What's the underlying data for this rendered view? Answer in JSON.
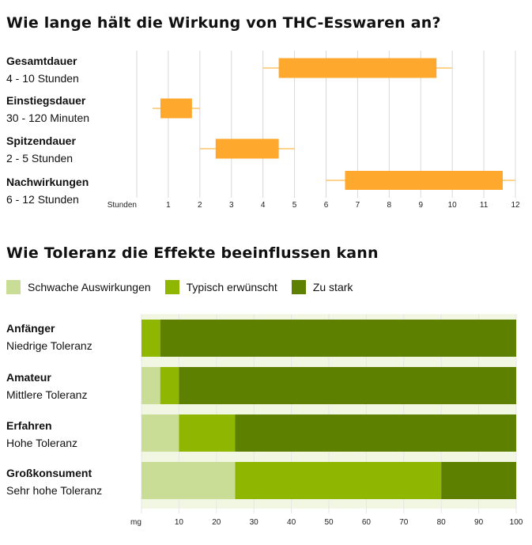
{
  "chart_data": [
    {
      "type": "bar",
      "title": "Wie lange hält die Wirkung von THC-Esswaren an?",
      "xlabel": "Stunden",
      "xlim": [
        0,
        12
      ],
      "ticks": [
        1,
        2,
        3,
        4,
        5,
        6,
        7,
        8,
        9,
        10,
        11,
        12
      ],
      "grid": true,
      "colors": {
        "box": "#FFA82E",
        "whisker": "#FFC466",
        "grid": "#D8D8D8"
      },
      "rows": [
        {
          "name": "Gesamtdauer",
          "range_label": "4 - 10 Stunden",
          "min": 4,
          "q1": 4.5,
          "q3": 9.5,
          "max": 10
        },
        {
          "name": "Einstiegsdauer",
          "range_label": "30 - 120 Minuten",
          "min": 0.5,
          "q1": 0.75,
          "q3": 1.75,
          "max": 2
        },
        {
          "name": "Spitzendauer",
          "range_label": "2 - 5 Stunden",
          "min": 2,
          "q1": 2.5,
          "q3": 4.5,
          "max": 5
        },
        {
          "name": "Nachwirkungen",
          "range_label": "6 - 12 Stunden",
          "min": 6,
          "q1": 6.6,
          "q3": 11.6,
          "max": 12
        }
      ]
    },
    {
      "type": "bar",
      "stacked": true,
      "title": "Wie Toleranz die Effekte beeinflussen kann",
      "xlabel": "mg",
      "xlim": [
        0,
        100
      ],
      "ticks": [
        10,
        20,
        30,
        40,
        50,
        60,
        70,
        80,
        90,
        100
      ],
      "legend_position": "top-left",
      "series": [
        {
          "name": "Schwache Auswirkungen",
          "color": "#C9DD96"
        },
        {
          "name": "Typisch erwünscht",
          "color": "#8FB600"
        },
        {
          "name": "Zu stark",
          "color": "#5D8000"
        }
      ],
      "rows": [
        {
          "name": "Anfänger",
          "tolerance": "Niedrige Toleranz",
          "values": [
            0,
            5,
            95
          ]
        },
        {
          "name": "Amateur",
          "tolerance": "Mittlere Toleranz",
          "values": [
            5,
            5,
            90
          ]
        },
        {
          "name": "Erfahren",
          "tolerance": "Hohe Toleranz",
          "values": [
            10,
            15,
            75
          ]
        },
        {
          "name": "Großkonsument",
          "tolerance": "Sehr hohe Toleranz",
          "values": [
            25,
            55,
            20
          ]
        }
      ],
      "band_color": "#F2F7E4"
    }
  ]
}
